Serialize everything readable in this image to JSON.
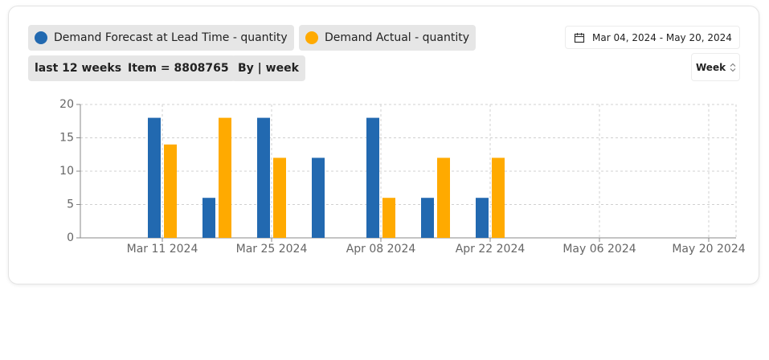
{
  "chart_data": {
    "type": "bar",
    "categories": [
      null,
      "Mar 11 2024",
      null,
      "Mar 25 2024",
      null,
      "Apr 08 2024",
      null,
      "Apr 22 2024",
      null,
      "May 06 2024",
      null,
      "May 20 2024"
    ],
    "series": [
      {
        "name": "Demand Forecast at Lead Time - quantity",
        "color": "#2269b0",
        "values": [
          null,
          18,
          6,
          18,
          12,
          18,
          6,
          6,
          null,
          null,
          null,
          null
        ]
      },
      {
        "name": "Demand Actual - quantity",
        "color": "#ffaa00",
        "values": [
          null,
          14,
          18,
          12,
          null,
          6,
          12,
          12,
          null,
          null,
          null,
          null
        ]
      }
    ],
    "ylim": [
      0,
      20
    ],
    "yticks": [
      0,
      5,
      10,
      15,
      20
    ],
    "grid": true
  },
  "filters": [
    "last 12 weeks",
    "Item = 8808765",
    "By | week"
  ],
  "date_range": "Mar 04, 2024 - May 20, 2024",
  "granularity": "Week"
}
